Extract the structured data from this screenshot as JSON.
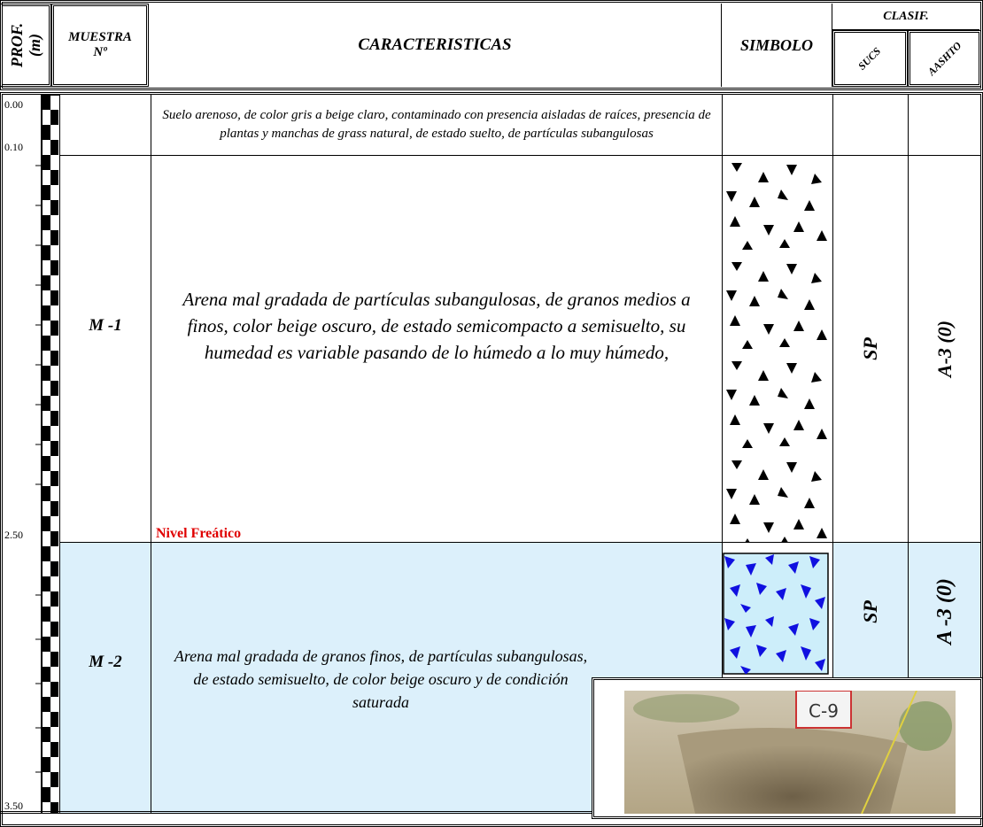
{
  "header": {
    "depth": "PROF.",
    "depth_unit": "(m)",
    "sample": "MUESTRA",
    "sample_no": "Nº",
    "description": "CARACTERISTICAS",
    "symbol": "SIMBOLO",
    "classification": "CLASIF.",
    "sucs": "SUCS",
    "aashto": "AASHTO"
  },
  "depth_labels": [
    "0.00",
    "0.10",
    "2.50",
    "3.50"
  ],
  "layers": [
    {
      "description": "Suelo arenoso, de color gris a beige claro, contaminado con presencia aisladas de raíces, presencia de plantas y manchas de grass natural, de estado suelto, de partículas subangulosas"
    },
    {
      "sample": "M -1",
      "description": "Arena mal gradada de partículas subangulosas, de granos medios a finos, color beige oscuro, de estado semicompacto a semisuelto, su humedad es variable pasando de lo húmedo a lo muy húmedo,",
      "sucs": "SP",
      "aashto": "A-3 (0)"
    },
    {
      "sample": "M -2",
      "description": "Arena mal gradada de granos finos, de partículas subangulosas, de estado semisuelto, de color beige oscuro y de condición saturada",
      "sucs": "SP",
      "aashto": "A -3 (0)"
    }
  ],
  "water_table": "Nivel Freático",
  "photo": {
    "sign": "C-9"
  }
}
